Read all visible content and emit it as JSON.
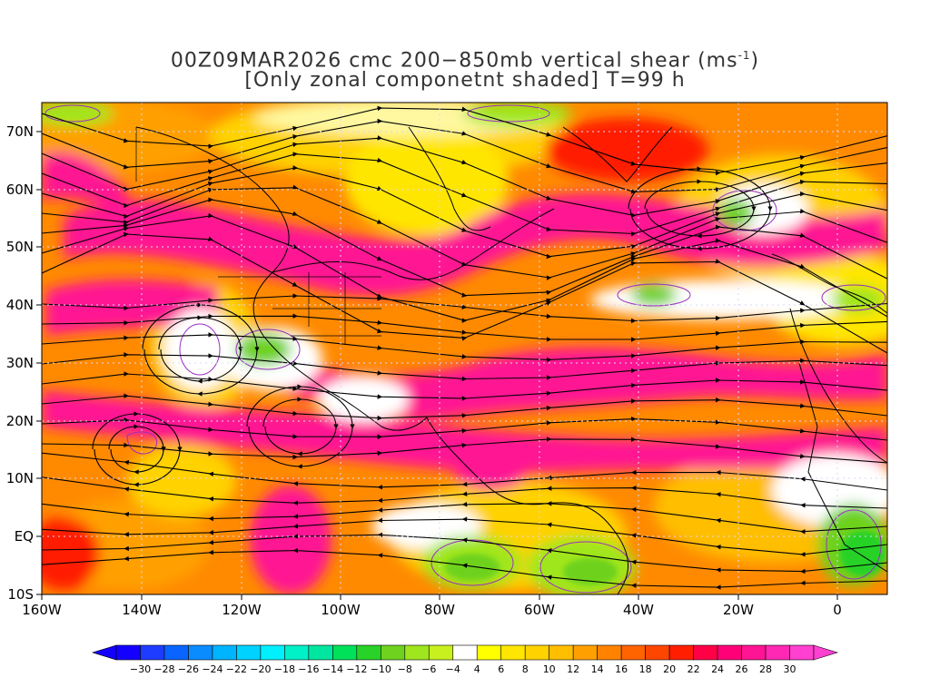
{
  "title": {
    "line1_prefix": "00Z09MAR2026 cmc 200−850mb vertical shear (ms",
    "line1_sup": "-1",
    "line1_suffix": ")",
    "line2": "[Only zonal componetnt shaded] T=99 h"
  },
  "map": {
    "lat_labels": [
      "70N",
      "60N",
      "50N",
      "40N",
      "30N",
      "20N",
      "10N",
      "EQ",
      "10S"
    ],
    "lon_labels": [
      "160W",
      "140W",
      "120W",
      "100W",
      "80W",
      "60W",
      "40W",
      "20W",
      "0"
    ],
    "lat_range": [
      -10,
      75
    ],
    "lon_range": [
      -160,
      10
    ],
    "grid": "dotted",
    "streamlines": "black with arrowheads",
    "contour_color": "#9a2fbf"
  },
  "colorbar": {
    "labels": [
      "−30",
      "−28",
      "−26",
      "−24",
      "−22",
      "−20",
      "−18",
      "−16",
      "−14",
      "−12",
      "−10",
      "−8",
      "−6",
      "−4",
      "4",
      "6",
      "8",
      "10",
      "12",
      "14",
      "16",
      "18",
      "20",
      "22",
      "24",
      "26",
      "28",
      "30"
    ],
    "colors": [
      "#1400ff",
      "#1e3cff",
      "#0a64ff",
      "#0a8cff",
      "#00b4ff",
      "#00d2ff",
      "#00f0ff",
      "#00f0c8",
      "#00e6a0",
      "#00e15a",
      "#28d228",
      "#6ed21e",
      "#a0e61e",
      "#c8f01e",
      "#ffffff",
      "#ffff00",
      "#ffe600",
      "#ffd200",
      "#ffbe00",
      "#ffa000",
      "#ff8200",
      "#ff6400",
      "#ff4600",
      "#ff1e00",
      "#ff0046",
      "#ff0078",
      "#ff1493",
      "#ff28b4",
      "#ff40d0"
    ]
  }
}
